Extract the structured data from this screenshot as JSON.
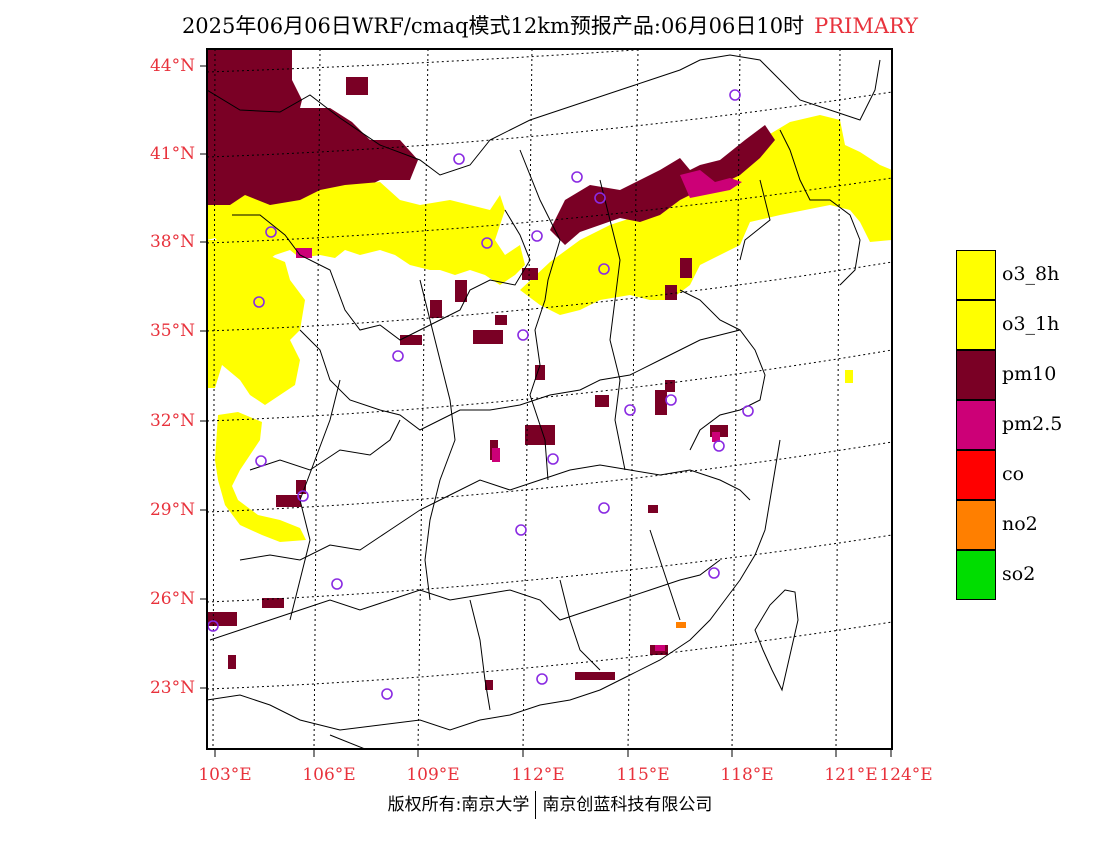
{
  "header": {
    "title": "2025年06月06日WRF/cmaq模式12km预报产品:06月06日10时",
    "tag": "PRIMARY"
  },
  "map": {
    "lat_labels": [
      "44°N",
      "41°N",
      "38°N",
      "35°N",
      "32°N",
      "29°N",
      "26°N",
      "23°N"
    ],
    "lon_labels": [
      "103°E",
      "106°E",
      "109°E",
      "112°E",
      "115°E",
      "118°E",
      "121°E",
      "124°E"
    ],
    "colors": {
      "o3_8h": "#ffff00",
      "o3_1h": "#ffff00",
      "pm10": "#7a0025",
      "pm2.5": "#cc0077",
      "co": "#ff0000",
      "no2": "#ff7f00",
      "so2": "#00dd00",
      "station_marker": "#8a2be2"
    }
  },
  "legend": {
    "items": [
      {
        "label": "o3_8h",
        "color": "#ffff00"
      },
      {
        "label": "o3_1h",
        "color": "#ffff00"
      },
      {
        "label": "pm10",
        "color": "#7a0025"
      },
      {
        "label": "pm2.5",
        "color": "#cc0077"
      },
      {
        "label": "co",
        "color": "#ff0000"
      },
      {
        "label": "no2",
        "color": "#ff7f00"
      },
      {
        "label": "so2",
        "color": "#00dd00"
      }
    ]
  },
  "footer": {
    "left": "版权所有:南京大学",
    "right": "南京创蓝科技有限公司"
  }
}
